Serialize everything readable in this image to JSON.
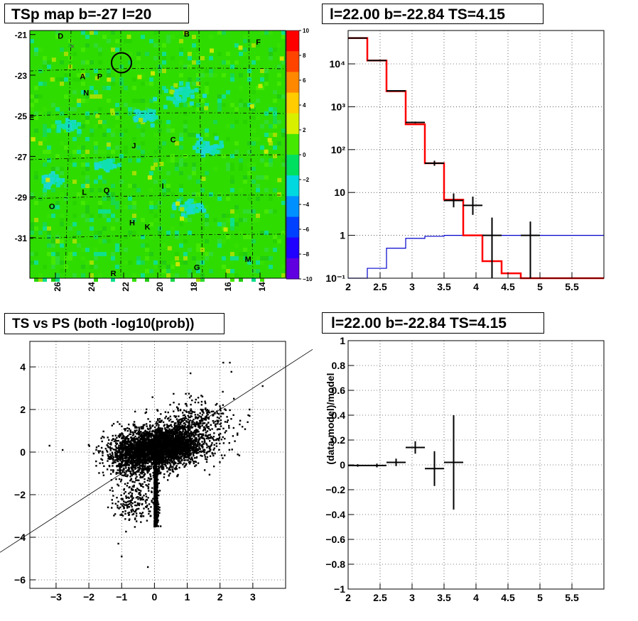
{
  "panels": {
    "map_title": "TSp map b=-27 l=20",
    "spectrum_title": "l=22.00 b=-22.84 TS=4.15",
    "scatter_title": "TS vs PS (both -log10(prob))",
    "residual_title": "l=22.00 b=-22.84 TS=4.15"
  },
  "chart_data": [
    {
      "type": "heatmap",
      "title": "TSp map b=-27 l=20",
      "x_ticks": [
        "26",
        "24",
        "22",
        "20",
        "18",
        "16",
        "14"
      ],
      "y_ticks": [
        "-21",
        "-23",
        "-25",
        "-27",
        "-29",
        "-31"
      ],
      "colorbar_ticks": [
        "10",
        "8",
        "6",
        "4",
        "2",
        "0",
        "−2",
        "−4",
        "−6",
        "−8",
        "−10"
      ],
      "colorbar_range": [
        -10,
        10
      ],
      "xlim": [
        27.5,
        12.5
      ],
      "ylim": [
        -33,
        -20.8
      ],
      "source_labels": [
        {
          "label": "D",
          "l": 25.7,
          "b": -21.2
        },
        {
          "label": "B",
          "l": 18.3,
          "b": -21.1
        },
        {
          "label": "F",
          "l": 14.1,
          "b": -21.5
        },
        {
          "label": "A",
          "l": 24.4,
          "b": -23.2
        },
        {
          "label": "P",
          "l": 23.4,
          "b": -23.2
        },
        {
          "label": "N",
          "l": 24.2,
          "b": -24.0
        },
        {
          "label": "E",
          "l": 27.4,
          "b": -25.2
        },
        {
          "label": "C",
          "l": 19.1,
          "b": -26.3
        },
        {
          "label": "J",
          "l": 21.4,
          "b": -26.6
        },
        {
          "label": "I",
          "l": 19.7,
          "b": -28.6
        },
        {
          "label": "L",
          "l": 24.3,
          "b": -28.9
        },
        {
          "label": "Q",
          "l": 23.0,
          "b": -28.8
        },
        {
          "label": "O",
          "l": 26.2,
          "b": -29.6
        },
        {
          "label": "H",
          "l": 21.5,
          "b": -30.4
        },
        {
          "label": "K",
          "l": 20.6,
          "b": -30.6
        },
        {
          "label": "M",
          "l": 14.7,
          "b": -32.2
        },
        {
          "label": "G",
          "l": 17.7,
          "b": -32.6
        },
        {
          "label": "R",
          "l": 22.6,
          "b": -32.9
        }
      ],
      "highlight_circle": {
        "l": 22.0,
        "b": -22.84
      },
      "colors": {
        "background": "#2fdc00",
        "circle": "#000000"
      }
    },
    {
      "type": "line",
      "title": "l=22.00 b=-22.84 TS=4.15",
      "y_log": true,
      "xlim": [
        2,
        6
      ],
      "ylim": [
        0.1,
        60000
      ],
      "x_ticks": [
        "2",
        "2.5",
        "3",
        "3.5",
        "4",
        "4.5",
        "5",
        "5.5"
      ],
      "y_ticks": [
        "10⁻¹",
        "1",
        "10",
        "10²",
        "10³",
        "10⁴"
      ],
      "bin_edges": [
        2.0,
        2.3,
        2.6,
        2.9,
        3.2,
        3.5,
        3.8,
        4.1,
        4.4,
        4.7,
        5.0,
        5.3,
        5.6,
        6.0
      ],
      "series": [
        {
          "style": "red-histogram",
          "color": "#ff0000",
          "values": [
            40000,
            12000,
            2300,
            390,
            48,
            6.8,
            1.0,
            0.25,
            0.13,
            0.1,
            0.1,
            0.1,
            0.1
          ]
        },
        {
          "style": "blue-histogram",
          "color": "#0000cc",
          "values": [
            0.1,
            0.17,
            0.5,
            0.85,
            0.95,
            1.0,
            1.0,
            1.0,
            1.0,
            1.0,
            1.0,
            1.0,
            1.0
          ]
        },
        {
          "style": "data-points",
          "color": "#000000",
          "points": [
            {
              "x": 2.15,
              "y": 40000,
              "xerr": 0.15,
              "ylo": 39500,
              "yhi": 40500
            },
            {
              "x": 2.45,
              "y": 12000,
              "xerr": 0.15,
              "ylo": 11800,
              "yhi": 12200
            },
            {
              "x": 2.75,
              "y": 2350,
              "xerr": 0.15,
              "ylo": 2300,
              "yhi": 2400
            },
            {
              "x": 3.05,
              "y": 430,
              "xerr": 0.15,
              "ylo": 410,
              "yhi": 450
            },
            {
              "x": 3.35,
              "y": 48,
              "xerr": 0.15,
              "ylo": 42,
              "yhi": 55
            },
            {
              "x": 3.65,
              "y": 6.5,
              "xerr": 0.15,
              "ylo": 4.5,
              "yhi": 9.5
            },
            {
              "x": 3.95,
              "y": 5,
              "xerr": 0.15,
              "ylo": 3,
              "yhi": 8
            },
            {
              "x": 4.25,
              "y": 1,
              "xerr": 0.15,
              "ylo": 0.1,
              "yhi": 2.6
            },
            {
              "x": 4.85,
              "y": 1,
              "xerr": 0.15,
              "ylo": 0.1,
              "yhi": 2.1
            }
          ]
        }
      ]
    },
    {
      "type": "scatter",
      "title": "TS vs PS (both -log10(prob))",
      "xlim": [
        -3.8,
        4.0
      ],
      "ylim": [
        -6.4,
        5.2
      ],
      "x_ticks": [
        "−3",
        "−2",
        "−1",
        "0",
        "1",
        "2",
        "3"
      ],
      "y_ticks": [
        "−6",
        "−4",
        "−2",
        "0",
        "2",
        "4"
      ],
      "diagonal_line": {
        "slope": 1,
        "intercept": 0
      },
      "clusters": [
        {
          "shape": "blob",
          "center": [
            0.4,
            0.3
          ],
          "spread": [
            0.5,
            0.45
          ],
          "count": 2200
        },
        {
          "shape": "blob",
          "center": [
            -0.5,
            -0.1
          ],
          "spread": [
            0.5,
            0.5
          ],
          "count": 1400
        },
        {
          "shape": "stem",
          "x": 0.0,
          "y_range": [
            -3.5,
            0.0
          ],
          "count": 900
        },
        {
          "shape": "tail",
          "center": [
            1.2,
            1.2
          ],
          "spread": [
            0.6,
            0.6
          ],
          "count": 500
        },
        {
          "shape": "tail",
          "center": [
            -0.6,
            -2.2
          ],
          "spread": [
            0.3,
            0.6
          ],
          "count": 220
        }
      ],
      "outliers": [
        [
          2.3,
          4.2
        ],
        [
          2.1,
          4.2
        ],
        [
          1.1,
          3.7
        ],
        [
          3.3,
          3.1
        ],
        [
          2.9,
          2.0
        ],
        [
          2.6,
          1.3
        ],
        [
          -3.2,
          0.3
        ],
        [
          -2.8,
          0.1
        ],
        [
          -0.2,
          -5.4
        ],
        [
          -1.0,
          -4.9
        ],
        [
          -1.1,
          -4.3
        ],
        [
          2.9,
          1.7
        ]
      ],
      "colors": {
        "points": "#000000"
      }
    },
    {
      "type": "scatter",
      "title": "l=22.00 b=-22.84 TS=4.15",
      "ylabel": "(data-model)/model",
      "xlim": [
        2,
        6
      ],
      "ylim": [
        -1,
        1
      ],
      "x_ticks": [
        "2",
        "2.5",
        "3",
        "3.5",
        "4",
        "4.5",
        "5",
        "5.5"
      ],
      "y_ticks": [
        "−1",
        "−0.8",
        "−0.6",
        "−0.4",
        "−0.2",
        "0",
        "0.2",
        "0.4",
        "0.6",
        "0.8",
        "1"
      ],
      "points": [
        {
          "x": 2.15,
          "y": -0.005,
          "xerr": 0.15,
          "yerr": 0.01
        },
        {
          "x": 2.45,
          "y": -0.005,
          "xerr": 0.15,
          "yerr": 0.015
        },
        {
          "x": 2.75,
          "y": 0.02,
          "xerr": 0.15,
          "yerr": 0.03
        },
        {
          "x": 3.05,
          "y": 0.14,
          "xerr": 0.15,
          "yerr": 0.05
        },
        {
          "x": 3.35,
          "y": -0.03,
          "xerr": 0.15,
          "yerr": 0.14
        },
        {
          "x": 3.65,
          "y": 0.02,
          "xerr": 0.15,
          "yerr": 0.38
        }
      ]
    }
  ]
}
